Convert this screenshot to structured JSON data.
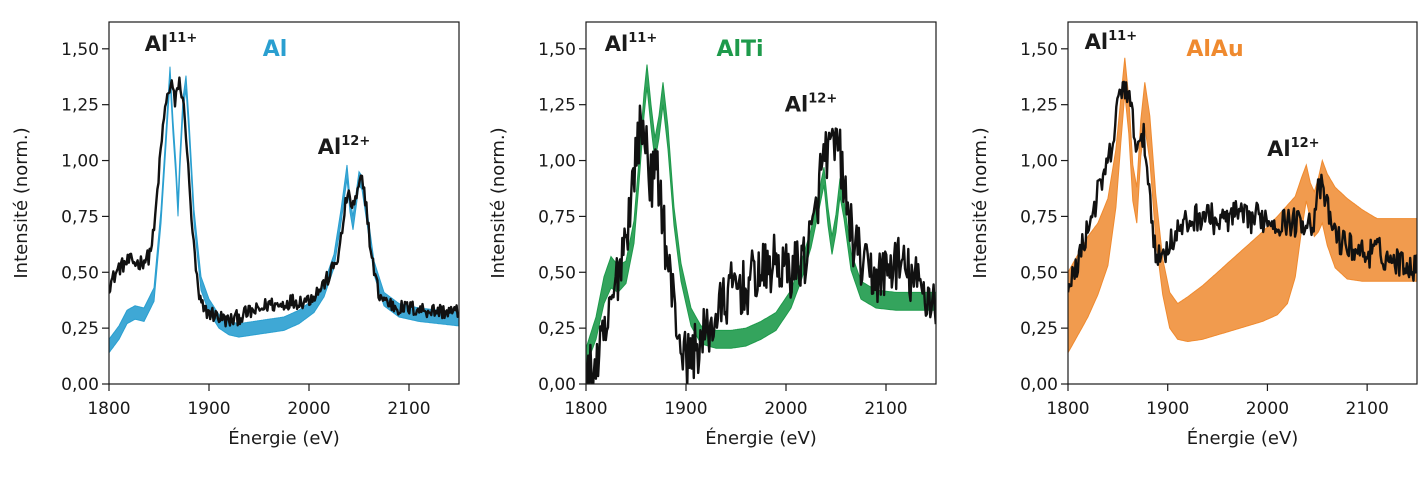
{
  "chart_data": [
    {
      "type": "line",
      "xlabel": "Énergie (eV)",
      "ylabel": "Intensité (norm.)",
      "xlim": [
        1800,
        2150
      ],
      "ylim": [
        0,
        1.62
      ],
      "xticks": [
        1800,
        1900,
        2000,
        2100
      ],
      "xtick_labels": [
        "1800",
        "1900",
        "2000",
        "2100"
      ],
      "yticks": [
        0,
        0.25,
        0.5,
        0.75,
        1.0,
        1.25,
        1.5
      ],
      "ytick_labels": [
        "0,00",
        "0,25",
        "0,50",
        "0,75",
        "1,00",
        "1,25",
        "1,50"
      ],
      "legend": {
        "text": "Al",
        "color": "#2a9fd0"
      },
      "annotations": [
        {
          "base": "Al",
          "sup": "11+",
          "x": 1862,
          "y": 1.49
        },
        {
          "base": "Al",
          "sup": "12+",
          "x": 2035,
          "y": 1.03
        }
      ],
      "series": [
        {
          "role": "band",
          "color": "#2a9fd0",
          "x": [
            1800,
            1810,
            1818,
            1826,
            1835,
            1845,
            1852,
            1857,
            1861,
            1864,
            1867,
            1869,
            1871,
            1874,
            1877,
            1880,
            1885,
            1892,
            1900,
            1910,
            1920,
            1930,
            1945,
            1960,
            1975,
            1990,
            2005,
            2015,
            2025,
            2032,
            2038,
            2041,
            2044,
            2047,
            2050,
            2053,
            2058,
            2065,
            2075,
            2090,
            2110,
            2130,
            2150
          ],
          "y": [
            0.17,
            0.23,
            0.3,
            0.32,
            0.31,
            0.4,
            0.75,
            1.1,
            1.39,
            1.15,
            0.95,
            0.78,
            1.0,
            1.25,
            1.35,
            1.15,
            0.75,
            0.45,
            0.35,
            0.28,
            0.25,
            0.24,
            0.25,
            0.26,
            0.27,
            0.3,
            0.35,
            0.42,
            0.55,
            0.75,
            0.95,
            0.8,
            0.72,
            0.82,
            0.92,
            0.9,
            0.75,
            0.52,
            0.38,
            0.33,
            0.31,
            0.3,
            0.29
          ],
          "width": [
            0.03,
            0.03,
            0.03,
            0.03,
            0.03,
            0.03,
            0.03,
            0.03,
            0.03,
            0.03,
            0.03,
            0.03,
            0.03,
            0.03,
            0.03,
            0.03,
            0.03,
            0.03,
            0.03,
            0.03,
            0.03,
            0.03,
            0.03,
            0.03,
            0.03,
            0.03,
            0.03,
            0.03,
            0.03,
            0.03,
            0.03,
            0.03,
            0.03,
            0.03,
            0.03,
            0.03,
            0.03,
            0.03,
            0.03,
            0.03,
            0.03,
            0.03,
            0.03
          ]
        },
        {
          "role": "line",
          "color": "#111111",
          "noise": 0.035,
          "x": [
            1800,
            1810,
            1820,
            1830,
            1840,
            1845,
            1850,
            1855,
            1860,
            1863,
            1866,
            1868,
            1870,
            1873,
            1876,
            1880,
            1885,
            1890,
            1895,
            1900,
            1910,
            1920,
            1930,
            1940,
            1950,
            1960,
            1970,
            1980,
            1990,
            2000,
            2010,
            2020,
            2030,
            2038,
            2043,
            2047,
            2052,
            2057,
            2062,
            2070,
            2080,
            2090,
            2100,
            2120,
            2150
          ],
          "y": [
            0.44,
            0.52,
            0.55,
            0.54,
            0.57,
            0.68,
            0.95,
            1.2,
            1.32,
            1.35,
            1.25,
            1.3,
            1.37,
            1.28,
            1.2,
            0.9,
            0.6,
            0.38,
            0.33,
            0.32,
            0.3,
            0.28,
            0.3,
            0.32,
            0.33,
            0.36,
            0.35,
            0.37,
            0.37,
            0.38,
            0.42,
            0.48,
            0.58,
            0.85,
            0.8,
            0.82,
            0.92,
            0.82,
            0.58,
            0.4,
            0.36,
            0.34,
            0.34,
            0.33,
            0.32
          ]
        }
      ]
    },
    {
      "type": "line",
      "xlabel": "Énergie (eV)",
      "ylabel": "Intensité (norm.)",
      "xlim": [
        1800,
        2150
      ],
      "ylim": [
        0,
        1.62
      ],
      "xticks": [
        1800,
        1900,
        2000,
        2100
      ],
      "xtick_labels": [
        "1800",
        "1900",
        "2000",
        "2100"
      ],
      "yticks": [
        0,
        0.25,
        0.5,
        0.75,
        1.0,
        1.25,
        1.5
      ],
      "ytick_labels": [
        "0,00",
        "0,25",
        "0,50",
        "0,75",
        "1,00",
        "1,25",
        "1,50"
      ],
      "legend": {
        "text": "AlTi",
        "color": "#1e9a4b"
      },
      "annotations": [
        {
          "base": "Al",
          "sup": "11+",
          "x": 1845,
          "y": 1.49
        },
        {
          "base": "Al",
          "sup": "12+",
          "x": 2025,
          "y": 1.22
        }
      ],
      "series": [
        {
          "role": "band",
          "color": "#1e9a4b",
          "x": [
            1800,
            1810,
            1818,
            1825,
            1832,
            1840,
            1848,
            1853,
            1858,
            1861,
            1865,
            1869,
            1873,
            1877,
            1882,
            1888,
            1895,
            1905,
            1915,
            1930,
            1945,
            1960,
            1975,
            1990,
            2005,
            2015,
            2025,
            2032,
            2038,
            2042,
            2046,
            2050,
            2054,
            2058,
            2065,
            2075,
            2090,
            2110,
            2130,
            2150
          ],
          "y": [
            0.12,
            0.25,
            0.42,
            0.5,
            0.47,
            0.5,
            0.68,
            0.95,
            1.25,
            1.38,
            1.2,
            1.05,
            1.15,
            1.3,
            1.1,
            0.75,
            0.5,
            0.3,
            0.22,
            0.2,
            0.2,
            0.21,
            0.24,
            0.28,
            0.38,
            0.5,
            0.65,
            0.8,
            0.93,
            0.75,
            0.62,
            0.72,
            0.88,
            0.78,
            0.55,
            0.42,
            0.38,
            0.37,
            0.37,
            0.37
          ],
          "width": [
            0.04,
            0.05,
            0.06,
            0.07,
            0.06,
            0.05,
            0.05,
            0.05,
            0.05,
            0.05,
            0.05,
            0.05,
            0.05,
            0.05,
            0.05,
            0.04,
            0.04,
            0.04,
            0.04,
            0.04,
            0.04,
            0.04,
            0.04,
            0.04,
            0.04,
            0.04,
            0.04,
            0.04,
            0.04,
            0.04,
            0.04,
            0.04,
            0.04,
            0.04,
            0.04,
            0.04,
            0.04,
            0.04,
            0.04,
            0.04
          ]
        },
        {
          "role": "line",
          "color": "#111111",
          "noise": 0.13,
          "x": [
            1800,
            1810,
            1820,
            1830,
            1835,
            1840,
            1845,
            1850,
            1855,
            1860,
            1865,
            1870,
            1875,
            1880,
            1885,
            1890,
            1895,
            1900,
            1910,
            1920,
            1930,
            1940,
            1950,
            1960,
            1970,
            1980,
            1990,
            2000,
            2010,
            2020,
            2028,
            2035,
            2040,
            2045,
            2050,
            2055,
            2060,
            2070,
            2080,
            2090,
            2100,
            2110,
            2120,
            2130,
            2140,
            2150
          ],
          "y": [
            0.02,
            0.08,
            0.22,
            0.45,
            0.58,
            0.68,
            0.82,
            1.05,
            1.15,
            1.1,
            0.9,
            0.95,
            0.85,
            0.6,
            0.45,
            0.3,
            0.18,
            0.1,
            0.16,
            0.22,
            0.3,
            0.38,
            0.45,
            0.42,
            0.5,
            0.5,
            0.55,
            0.5,
            0.52,
            0.58,
            0.7,
            0.95,
            1.05,
            1.02,
            1.08,
            1.0,
            0.8,
            0.6,
            0.5,
            0.48,
            0.5,
            0.55,
            0.5,
            0.45,
            0.4,
            0.38
          ]
        }
      ]
    },
    {
      "type": "line",
      "xlabel": "Énergie (eV)",
      "ylabel": "Intensité (norm.)",
      "xlim": [
        1800,
        2150
      ],
      "ylim": [
        0,
        1.62
      ],
      "xticks": [
        1800,
        1900,
        2000,
        2100
      ],
      "xtick_labels": [
        "1800",
        "1900",
        "2000",
        "2100"
      ],
      "yticks": [
        0,
        0.25,
        0.5,
        0.75,
        1.0,
        1.25,
        1.5
      ],
      "ytick_labels": [
        "0,00",
        "0,25",
        "0,50",
        "0,75",
        "1,00",
        "1,25",
        "1,50"
      ],
      "legend": {
        "text": "AlAu",
        "color": "#ef8a2f"
      },
      "annotations": [
        {
          "base": "Al",
          "sup": "11+",
          "x": 1843,
          "y": 1.5
        },
        {
          "base": "Al",
          "sup": "12+",
          "x": 2026,
          "y": 1.02
        }
      ],
      "series": [
        {
          "role": "band",
          "color": "#ef8a2f",
          "x": [
            1800,
            1810,
            1820,
            1830,
            1840,
            1848,
            1853,
            1857,
            1861,
            1865,
            1869,
            1873,
            1877,
            1882,
            1888,
            1895,
            1902,
            1910,
            1920,
            1935,
            1950,
            1965,
            1980,
            1995,
            2010,
            2020,
            2028,
            2034,
            2039,
            2043,
            2047,
            2051,
            2055,
            2060,
            2068,
            2080,
            2095,
            2110,
            2130,
            2150
          ],
          "y": [
            0.32,
            0.4,
            0.48,
            0.56,
            0.68,
            0.92,
            1.18,
            1.38,
            1.2,
            0.9,
            0.8,
            1.1,
            1.25,
            1.1,
            0.75,
            0.48,
            0.33,
            0.28,
            0.29,
            0.32,
            0.36,
            0.4,
            0.44,
            0.48,
            0.53,
            0.58,
            0.66,
            0.8,
            0.9,
            0.82,
            0.76,
            0.8,
            0.86,
            0.78,
            0.7,
            0.65,
            0.62,
            0.6,
            0.6,
            0.6
          ],
          "width": [
            0.18,
            0.18,
            0.18,
            0.16,
            0.15,
            0.13,
            0.1,
            0.08,
            0.08,
            0.08,
            0.08,
            0.08,
            0.1,
            0.1,
            0.1,
            0.08,
            0.08,
            0.08,
            0.1,
            0.12,
            0.14,
            0.16,
            0.18,
            0.2,
            0.22,
            0.22,
            0.18,
            0.12,
            0.08,
            0.08,
            0.1,
            0.12,
            0.14,
            0.16,
            0.18,
            0.18,
            0.16,
            0.14,
            0.14,
            0.14
          ]
        },
        {
          "role": "line",
          "color": "#111111",
          "noise": 0.065,
          "x": [
            1800,
            1805,
            1810,
            1820,
            1830,
            1840,
            1845,
            1850,
            1855,
            1860,
            1864,
            1868,
            1872,
            1876,
            1880,
            1885,
            1890,
            1895,
            1900,
            1910,
            1920,
            1930,
            1940,
            1950,
            1960,
            1970,
            1980,
            1990,
            2000,
            2010,
            2020,
            2030,
            2040,
            2045,
            2050,
            2055,
            2060,
            2070,
            2080,
            2090,
            2100,
            2110,
            2120,
            2130,
            2140,
            2150
          ],
          "y": [
            0.4,
            0.48,
            0.55,
            0.7,
            0.85,
            0.98,
            1.08,
            1.25,
            1.35,
            1.3,
            1.2,
            1.1,
            1.05,
            1.1,
            0.95,
            0.7,
            0.55,
            0.58,
            0.62,
            0.68,
            0.72,
            0.75,
            0.76,
            0.72,
            0.74,
            0.76,
            0.73,
            0.75,
            0.74,
            0.72,
            0.73,
            0.72,
            0.74,
            0.7,
            0.85,
            0.88,
            0.78,
            0.65,
            0.62,
            0.6,
            0.58,
            0.6,
            0.56,
            0.55,
            0.54,
            0.52
          ]
        }
      ]
    }
  ]
}
